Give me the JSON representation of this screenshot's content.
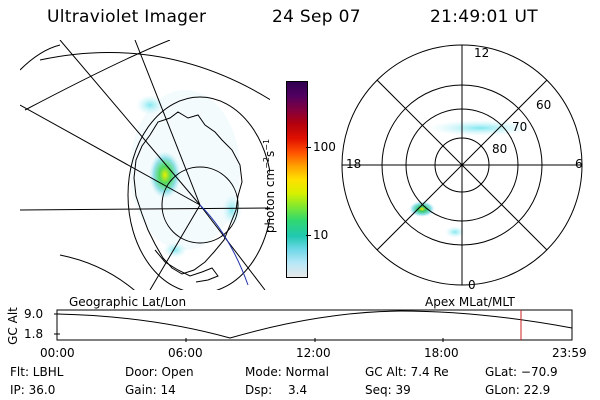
{
  "header": {
    "instrument": "Ultraviolet Imager",
    "date": "24 Sep 07",
    "time": "21:49:01 UT"
  },
  "colorbar": {
    "unit_label": "photon cm",
    "exp_a": "−2",
    "mid": "s",
    "exp_b": "−1",
    "ticks": [
      "100",
      "10"
    ],
    "colors": [
      "#e8e8e8",
      "#b8e8f8",
      "#70d8e8",
      "#20c8b0",
      "#30d870",
      "#80e830",
      "#d8f000",
      "#ffe000",
      "#ffa000",
      "#ff5000",
      "#e01000",
      "#b00010",
      "#800040",
      "#500060",
      "#300050"
    ]
  },
  "left_map": {
    "caption": "Geographic Lat/Lon"
  },
  "right_map": {
    "caption": "Apex MLat/MLT",
    "mlt_labels": {
      "top": "12",
      "left": "18",
      "right": "6",
      "bottom": "0"
    },
    "lat_labels": [
      "60",
      "70",
      "80"
    ]
  },
  "altitude_plot": {
    "y_label": "GC Alt",
    "y_ticks": [
      "9.0",
      "1.8"
    ],
    "x_ticks": [
      "00:00",
      "06:00",
      "12:00",
      "18:00",
      "23:59"
    ],
    "marker_color": "#cc2222"
  },
  "info": {
    "flt": "Flt: LBHL",
    "door": "Door: Open",
    "mode": "Mode: Normal",
    "gc_alt": "GC Alt: 7.4 Re",
    "glat": "GLat: −70.9",
    "ip": "IP: 36.0",
    "gain": "Gain: 14",
    "dsp_label": "Dsp:",
    "dsp_value": "3.4",
    "seq": "Seq: 39",
    "glon": "GLon:  22.9"
  }
}
